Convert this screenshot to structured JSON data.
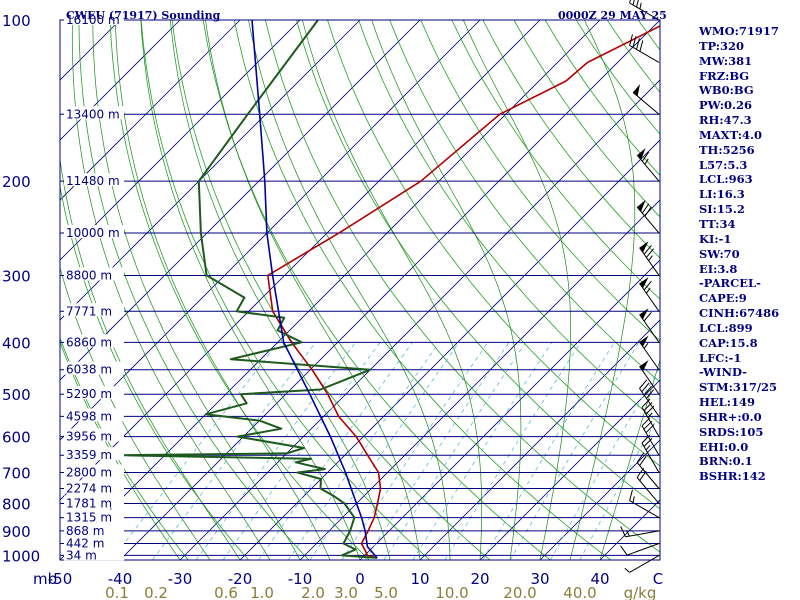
{
  "header": {
    "title": "CWEU (71917) Sounding",
    "time": "0000Z 29 MAY 25"
  },
  "indices": [
    {
      "label": "WMO",
      "value": "71917"
    },
    {
      "label": "TP",
      "value": "320"
    },
    {
      "label": "MW",
      "value": "381"
    },
    {
      "label": "FRZ",
      "value": "BG"
    },
    {
      "label": "WB0",
      "value": "BG"
    },
    {
      "label": "PW",
      "value": "0.26"
    },
    {
      "label": "RH",
      "value": "47.3"
    },
    {
      "label": "MAXT",
      "value": "4.0"
    },
    {
      "label": "TH",
      "value": "5256"
    },
    {
      "label": "L57",
      "value": "5.3"
    },
    {
      "label": "LCL",
      "value": "963"
    },
    {
      "label": "LI",
      "value": "16.3"
    },
    {
      "label": "SI",
      "value": "15.2"
    },
    {
      "label": "TT",
      "value": "34"
    },
    {
      "label": "KI",
      "value": "-1"
    },
    {
      "label": "SW",
      "value": "70"
    },
    {
      "label": "EI",
      "value": "3.8"
    },
    {
      "label": "",
      "value": "-PARCEL-"
    },
    {
      "label": "CAPE",
      "value": "9"
    },
    {
      "label": "CINH",
      "value": "67486"
    },
    {
      "label": "LCL",
      "value": "899"
    },
    {
      "label": "CAP",
      "value": "15.8"
    },
    {
      "label": "LFC",
      "value": "-1"
    },
    {
      "label": "",
      "value": "-WIND-"
    },
    {
      "label": "STM",
      "value": "317/25"
    },
    {
      "label": "HEL",
      "value": "149"
    },
    {
      "label": "SHR+",
      "value": "0.0"
    },
    {
      "label": "SRDS",
      "value": "105"
    },
    {
      "label": "EHI",
      "value": "0.0"
    },
    {
      "label": "BRN",
      "value": "0.1"
    },
    {
      "label": "BSHR",
      "value": "142"
    }
  ],
  "chart_data": {
    "type": "skew-t",
    "y_axis": {
      "unit": "mb",
      "scale": "log",
      "range": [
        1000,
        100
      ],
      "labels": [
        100,
        200,
        300,
        400,
        500,
        600,
        700,
        800,
        900,
        1000
      ]
    },
    "x_axis": {
      "unit": "C",
      "range": [
        -50,
        50
      ],
      "labels": [
        -50,
        -40,
        -30,
        -20,
        -10,
        0,
        10,
        20,
        30,
        40
      ]
    },
    "mixing_ratio_axis": {
      "unit": "g/kg",
      "labels": [
        "0.1",
        "0.2",
        "0.6",
        "1.0",
        "2.0",
        "3.0",
        "5.0",
        "10.0",
        "20.0",
        "40.0"
      ]
    },
    "heights": [
      {
        "p": 100,
        "label": "16100 m"
      },
      {
        "p": 150,
        "label": "13400 m"
      },
      {
        "p": 200,
        "label": "11480 m"
      },
      {
        "p": 250,
        "label": "10000 m"
      },
      {
        "p": 300,
        "label": "8800 m"
      },
      {
        "p": 350,
        "label": "7771 m"
      },
      {
        "p": 400,
        "label": "6860 m"
      },
      {
        "p": 450,
        "label": "6038 m"
      },
      {
        "p": 500,
        "label": "5290 m"
      },
      {
        "p": 550,
        "label": "4598 m"
      },
      {
        "p": 600,
        "label": "3956 m"
      },
      {
        "p": 650,
        "label": "3359 m"
      },
      {
        "p": 700,
        "label": "2800 m"
      },
      {
        "p": 750,
        "label": "2274 m"
      },
      {
        "p": 800,
        "label": "1781 m"
      },
      {
        "p": 850,
        "label": "1315 m"
      },
      {
        "p": 900,
        "label": "868 m"
      },
      {
        "p": 950,
        "label": "442 m"
      },
      {
        "p": 1000,
        "label": "34 m"
      }
    ],
    "series": [
      {
        "name": "",
        "role": "temperature",
        "color": "#b00000",
        "points": [
          [
            1011,
            2.5
          ],
          [
            1000,
            0.5
          ],
          [
            950,
            -2.5
          ],
          [
            900,
            -3.5
          ],
          [
            850,
            -4.7
          ],
          [
            800,
            -6.5
          ],
          [
            750,
            -8.5
          ],
          [
            700,
            -11.5
          ],
          [
            650,
            -16.2
          ],
          [
            600,
            -21.2
          ],
          [
            550,
            -27.5
          ],
          [
            500,
            -33.0
          ],
          [
            450,
            -39.7
          ],
          [
            400,
            -47.7
          ],
          [
            350,
            -56.0
          ],
          [
            300,
            -62.8
          ],
          [
            250,
            -58.0
          ],
          [
            200,
            -53.0
          ],
          [
            150,
            -51.0
          ],
          [
            130,
            -45.5
          ],
          [
            120,
            -45.0
          ],
          [
            100,
            -38.0
          ]
        ]
      },
      {
        "name": "",
        "role": "dewpoint",
        "color": "#1e5a1e",
        "points": [
          [
            1011,
            2.5
          ],
          [
            1000,
            -3.8
          ],
          [
            975,
            -2.5
          ],
          [
            950,
            -5.5
          ],
          [
            900,
            -6.5
          ],
          [
            850,
            -8.0
          ],
          [
            800,
            -12.0
          ],
          [
            775,
            -15.0
          ],
          [
            750,
            -18.5
          ],
          [
            720,
            -20.0
          ],
          [
            700,
            -25.0
          ],
          [
            690,
            -21.0
          ],
          [
            670,
            -27.0
          ],
          [
            660,
            -25.0
          ],
          [
            650,
            -58.0
          ],
          [
            645,
            -30.0
          ],
          [
            630,
            -28.0
          ],
          [
            600,
            -41.0
          ],
          [
            580,
            -35.0
          ],
          [
            560,
            -40.0
          ],
          [
            545,
            -50.0
          ],
          [
            520,
            -45.0
          ],
          [
            500,
            -47.5
          ],
          [
            490,
            -35.0
          ],
          [
            450,
            -30.0
          ],
          [
            430,
            -55.0
          ],
          [
            400,
            -46.0
          ],
          [
            380,
            -52.0
          ],
          [
            360,
            -53.0
          ],
          [
            350,
            -62.0
          ],
          [
            330,
            -63.0
          ],
          [
            300,
            -73.0
          ],
          [
            250,
            -81.0
          ],
          [
            200,
            -90.0
          ],
          [
            150,
            -93.0
          ],
          [
            100,
            -97.0
          ]
        ]
      },
      {
        "name": "",
        "role": "parcel",
        "color": "#0000a0",
        "points": [
          [
            1011,
            2.5
          ],
          [
            963,
            -1.0
          ],
          [
            900,
            -4.0
          ],
          [
            850,
            -6.8
          ],
          [
            800,
            -10.0
          ],
          [
            700,
            -17.0
          ],
          [
            600,
            -25.5
          ],
          [
            500,
            -36.0
          ],
          [
            400,
            -49.0
          ],
          [
            300,
            -62.0
          ],
          [
            250,
            -70.0
          ],
          [
            200,
            -79.0
          ],
          [
            150,
            -91.0
          ],
          [
            100,
            -108.0
          ]
        ]
      }
    ],
    "wind_barbs": [
      {
        "p": 1000,
        "dir": 240,
        "spd": 5
      },
      {
        "p": 950,
        "dir": 250,
        "spd": 10
      },
      {
        "p": 900,
        "dir": 260,
        "spd": 15
      },
      {
        "p": 850,
        "dir": 300,
        "spd": 15
      },
      {
        "p": 800,
        "dir": 320,
        "spd": 20
      },
      {
        "p": 750,
        "dir": 320,
        "spd": 20
      },
      {
        "p": 700,
        "dir": 330,
        "spd": 25
      },
      {
        "p": 650,
        "dir": 330,
        "spd": 30
      },
      {
        "p": 600,
        "dir": 330,
        "spd": 35
      },
      {
        "p": 550,
        "dir": 325,
        "spd": 40
      },
      {
        "p": 500,
        "dir": 325,
        "spd": 50
      },
      {
        "p": 450,
        "dir": 325,
        "spd": 55
      },
      {
        "p": 400,
        "dir": 325,
        "spd": 60
      },
      {
        "p": 350,
        "dir": 325,
        "spd": 65
      },
      {
        "p": 300,
        "dir": 325,
        "spd": 75
      },
      {
        "p": 250,
        "dir": 320,
        "spd": 70
      },
      {
        "p": 200,
        "dir": 320,
        "spd": 65
      },
      {
        "p": 150,
        "dir": 310,
        "spd": 50
      },
      {
        "p": 120,
        "dir": 300,
        "spd": 40
      },
      {
        "p": 100,
        "dir": 300,
        "spd": 35
      }
    ],
    "grid": true,
    "colors": {
      "isobar": "#000080",
      "isotherm": "#000080",
      "dry_adiabat": "#22a322",
      "moist_adiabat": "#1a8a1a",
      "mixing_ratio": "#5fb8d8",
      "barb": "#000000"
    }
  }
}
